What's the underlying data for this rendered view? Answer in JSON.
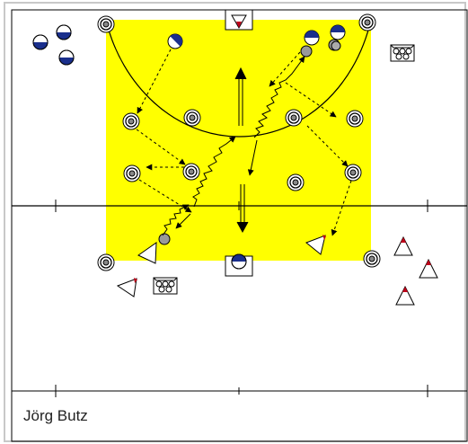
{
  "author": "Jörg Butz",
  "colors": {
    "zone": "#ffff00",
    "line": "#000000",
    "player_blue": "#1a2f8c",
    "player_red": "#c0001a",
    "ball": "#999999",
    "frame": "#c8c8c8"
  },
  "symbols": {
    "cone": "cone-marker",
    "ball_net": "ball-net-icon",
    "goal": "goal-icon",
    "attacker": "half-filled-circle-player",
    "defender": "triangle-player"
  }
}
